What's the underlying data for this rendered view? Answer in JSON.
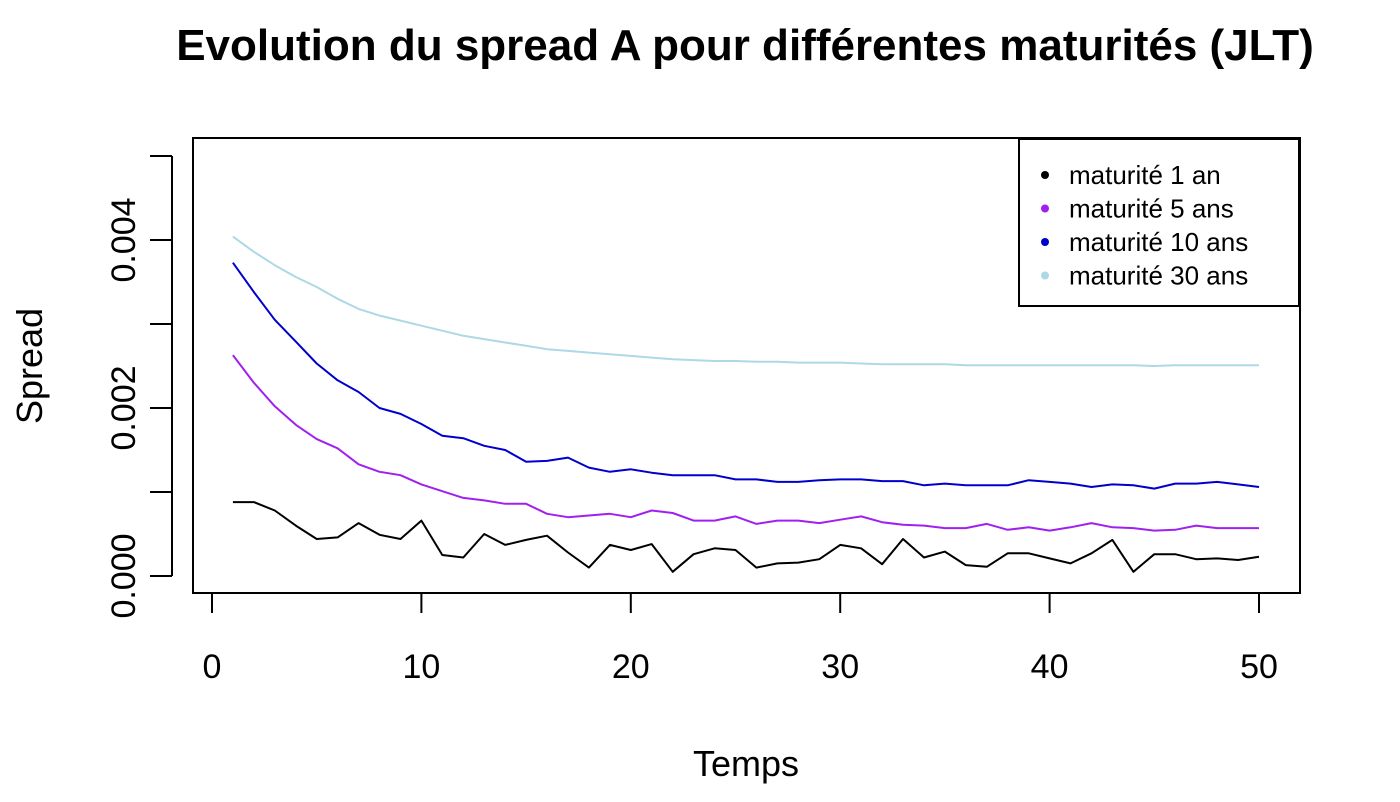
{
  "chart_data": {
    "type": "line",
    "title": "Evolution du spread A pour différentes maturités (JLT)",
    "xlabel": "Temps",
    "ylabel": "Spread",
    "xlim": [
      0,
      50
    ],
    "ylim": [
      0,
      0.005
    ],
    "x_ticks": [
      0,
      10,
      20,
      30,
      40,
      50
    ],
    "y_ticks": [
      0,
      0.001,
      0.002,
      0.003,
      0.004,
      0.005
    ],
    "y_tick_labels": [
      "0.000",
      "",
      "0.002",
      "",
      "0.004",
      ""
    ],
    "x_tick_labels": [
      "0",
      "10",
      "20",
      "30",
      "40",
      "50"
    ],
    "grid": false,
    "legend_position": "top-right",
    "x": [
      1,
      2,
      3,
      4,
      5,
      6,
      7,
      8,
      9,
      10,
      11,
      12,
      13,
      14,
      15,
      16,
      17,
      18,
      19,
      20,
      21,
      22,
      23,
      24,
      25,
      26,
      27,
      28,
      29,
      30,
      31,
      32,
      33,
      34,
      35,
      36,
      37,
      38,
      39,
      40,
      41,
      42,
      43,
      44,
      45,
      46,
      47,
      48,
      49,
      50
    ],
    "series": [
      {
        "name": "maturité 1 an",
        "color": "#000000",
        "values": [
          0.00088,
          0.00088,
          0.00078,
          0.0006,
          0.00044,
          0.00046,
          0.00063,
          0.00049,
          0.00044,
          0.00066,
          0.00025,
          0.00022,
          0.0005,
          0.00037,
          0.00043,
          0.00048,
          0.00028,
          0.0001,
          0.00037,
          0.00031,
          0.00038,
          5e-05,
          0.00026,
          0.00033,
          0.00031,
          0.0001,
          0.00015,
          0.00016,
          0.0002,
          0.00037,
          0.00033,
          0.00014,
          0.00044,
          0.00022,
          0.00029,
          0.00013,
          0.00011,
          0.00027,
          0.00027,
          0.00021,
          0.00015,
          0.00027,
          0.00043,
          5e-05,
          0.00026,
          0.00026,
          0.0002,
          0.00021,
          0.00019,
          0.00023
        ]
      },
      {
        "name": "maturité 5 ans",
        "color": "#a020f0",
        "values": [
          0.00263,
          0.0023,
          0.00202,
          0.0018,
          0.00163,
          0.00152,
          0.00133,
          0.00124,
          0.0012,
          0.00109,
          0.00101,
          0.00093,
          0.0009,
          0.00086,
          0.00086,
          0.00074,
          0.0007,
          0.00072,
          0.00074,
          0.0007,
          0.00078,
          0.00075,
          0.00066,
          0.00066,
          0.00071,
          0.00062,
          0.00066,
          0.00066,
          0.00063,
          0.00067,
          0.00071,
          0.00064,
          0.00061,
          0.0006,
          0.00057,
          0.00057,
          0.00062,
          0.00055,
          0.00058,
          0.00054,
          0.00058,
          0.00063,
          0.00058,
          0.00057,
          0.00054,
          0.00055,
          0.0006,
          0.00057,
          0.00057,
          0.00057
        ]
      },
      {
        "name": "maturité 10 ans",
        "color": "#0000cd",
        "values": [
          0.00373,
          0.00338,
          0.00305,
          0.00279,
          0.00253,
          0.00233,
          0.00219,
          0.002,
          0.00193,
          0.00181,
          0.00167,
          0.00164,
          0.00155,
          0.0015,
          0.00136,
          0.00137,
          0.00141,
          0.00129,
          0.00124,
          0.00127,
          0.00123,
          0.0012,
          0.0012,
          0.0012,
          0.00115,
          0.00115,
          0.00112,
          0.00112,
          0.00114,
          0.00115,
          0.00115,
          0.00113,
          0.00113,
          0.00108,
          0.0011,
          0.00108,
          0.00108,
          0.00108,
          0.00114,
          0.00112,
          0.0011,
          0.00106,
          0.00109,
          0.00108,
          0.00104,
          0.0011,
          0.0011,
          0.00112,
          0.00109,
          0.00106
        ]
      },
      {
        "name": "maturité 30 ans",
        "color": "#add8e6",
        "values": [
          0.00404,
          0.00386,
          0.0037,
          0.00356,
          0.00344,
          0.0033,
          0.00318,
          0.0031,
          0.00304,
          0.00298,
          0.00292,
          0.00286,
          0.00282,
          0.00278,
          0.00274,
          0.0027,
          0.00268,
          0.00266,
          0.00264,
          0.00262,
          0.0026,
          0.00258,
          0.00257,
          0.00256,
          0.00256,
          0.00255,
          0.00255,
          0.00254,
          0.00254,
          0.00254,
          0.00253,
          0.00252,
          0.00252,
          0.00252,
          0.00252,
          0.00251,
          0.00251,
          0.00251,
          0.00251,
          0.00251,
          0.00251,
          0.00251,
          0.00251,
          0.00251,
          0.0025,
          0.00251,
          0.00251,
          0.00251,
          0.00251,
          0.00251
        ]
      }
    ]
  }
}
